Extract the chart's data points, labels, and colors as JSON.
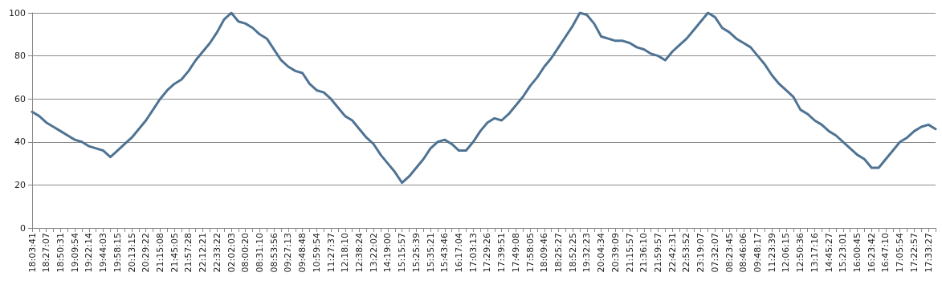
{
  "chart_data": {
    "type": "line",
    "categories": [
      "18:03:41",
      null,
      "18:27:07",
      null,
      "18:50:31",
      null,
      "19:09:54",
      null,
      "19:22:14",
      null,
      "19:44:03",
      null,
      "19:58:15",
      null,
      "20:13:15",
      null,
      "20:29:22",
      null,
      "21:15:08",
      null,
      "21:45:05",
      null,
      "21:57:28",
      null,
      "22:12:21",
      null,
      "22:33:22",
      null,
      "02:02:03",
      null,
      "08:00:20",
      null,
      "08:31:10",
      null,
      "08:53:56",
      null,
      "09:27:13",
      null,
      "09:48:48",
      null,
      "10:59:54",
      null,
      "11:27:37",
      null,
      "12:18:10",
      null,
      "12:38:24",
      null,
      "13:22:02",
      null,
      "14:19:00",
      null,
      "15:15:57",
      null,
      "15:25:39",
      null,
      "15:35:21",
      null,
      "15:43:46",
      null,
      "16:17:04",
      null,
      "17:03:13",
      null,
      "17:29:26",
      null,
      "17:39:51",
      null,
      "17:49:08",
      null,
      "17:58:05",
      null,
      "18:09:46",
      null,
      "18:25:27",
      null,
      "18:52:25",
      null,
      "19:32:23",
      null,
      "20:04:34",
      null,
      "20:39:09",
      null,
      "21:15:57",
      null,
      "21:36:10",
      null,
      "21:59:57",
      null,
      "22:42:31",
      null,
      "22:53:52",
      null,
      "23:19:07",
      null,
      "07:32:07",
      null,
      "08:23:45",
      null,
      "08:46:06",
      null,
      "09:48:17",
      null,
      "11:23:39",
      null,
      "12:06:15",
      null,
      "12:50:36",
      null,
      "13:17:16",
      null,
      "14:45:27",
      null,
      "15:23:01",
      null,
      "16:00:45",
      null,
      "16:23:42",
      null,
      "16:47:10",
      null,
      "17:05:54",
      null,
      "17:22:57",
      null,
      "17:33:27",
      null
    ],
    "series": [
      {
        "color": "#4f7393",
        "values": [
          54,
          52,
          49,
          47,
          45,
          43,
          41,
          40,
          38,
          37,
          36,
          33,
          36,
          39,
          42,
          46,
          50,
          55,
          60,
          64,
          67,
          69,
          73,
          78,
          82,
          86,
          91,
          97,
          100,
          96,
          95,
          93,
          90,
          88,
          83,
          78,
          75,
          73,
          72,
          67,
          64,
          63,
          60,
          56,
          52,
          50,
          46,
          42,
          39,
          34,
          30,
          26,
          21,
          24,
          28,
          32,
          37,
          40,
          41,
          39,
          36,
          36,
          40,
          45,
          49,
          51,
          50,
          53,
          57,
          61,
          66,
          70,
          75,
          79,
          84,
          89,
          94,
          100,
          99,
          95,
          89,
          88,
          87,
          87,
          86,
          84,
          83,
          81,
          80,
          78,
          82,
          85,
          88,
          92,
          96,
          100,
          98,
          93,
          91,
          88,
          86,
          84,
          80,
          76,
          71,
          67,
          64,
          61,
          55,
          53,
          50,
          48,
          45,
          43,
          40,
          37,
          34,
          32,
          28,
          28,
          32,
          36,
          40,
          42,
          45,
          47,
          48,
          46
        ]
      }
    ],
    "ylim": [
      0,
      100
    ],
    "yticks": [
      0,
      20,
      40,
      60,
      80,
      100
    ],
    "grid": "y",
    "marker": "none",
    "line_style": "solid"
  }
}
